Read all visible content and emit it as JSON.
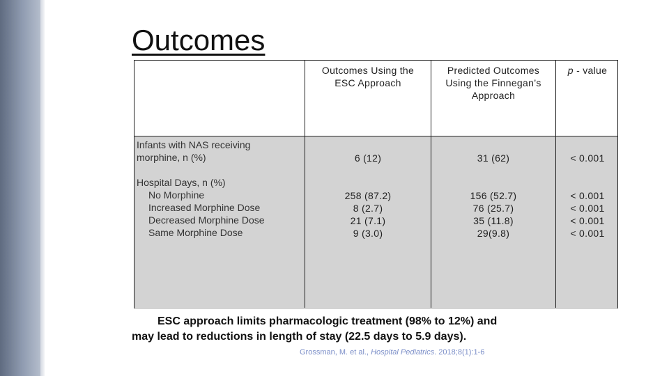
{
  "slide": {
    "title": "Outcomes"
  },
  "table": {
    "headers": [
      {
        "lines": [
          "Outcomes Using the",
          "ESC Approach"
        ]
      },
      {
        "lines": [
          "Predicted Outcomes",
          "Using the Finnegan’s",
          "Approach"
        ]
      },
      {
        "italic": "p",
        "rest": " - value"
      }
    ],
    "row1": {
      "label_lines": [
        "Infants with NAS receiving",
        "morphine, n (%)"
      ],
      "esc": "6 (12)",
      "finnegan": "31 (62)",
      "p": "< 0.001"
    },
    "row2": {
      "label_main": "Hospital Days, n (%)",
      "sub_labels": [
        "No Morphine",
        "Increased Morphine Dose",
        "Decreased Morphine Dose",
        "Same Morphine Dose"
      ],
      "esc": [
        "258 (87.2)",
        "8 (2.7)",
        "21 (7.1)",
        "9 (3.0)"
      ],
      "finnegan": [
        "156 (52.7)",
        "76 (25.7)",
        "35 (11.8)",
        "29(9.8)"
      ],
      "p": [
        "< 0.001",
        "< 0.001",
        "< 0.001",
        "< 0.001"
      ]
    }
  },
  "summary": {
    "line1": "ESC approach limits pharmacologic treatment (98% to 12%) and",
    "line2": "may lead to reductions in length of stay (22.5 days to 5.9 days)."
  },
  "citation": {
    "authors": "Grossman, M. et al., ",
    "journal": "Hospital Pediatrics",
    "rest": ". 2018;8(1):1-6"
  },
  "colors": {
    "band": "#7f8aa0",
    "table_fill": "#d3d3d3",
    "citation": "#7b8ec8"
  }
}
